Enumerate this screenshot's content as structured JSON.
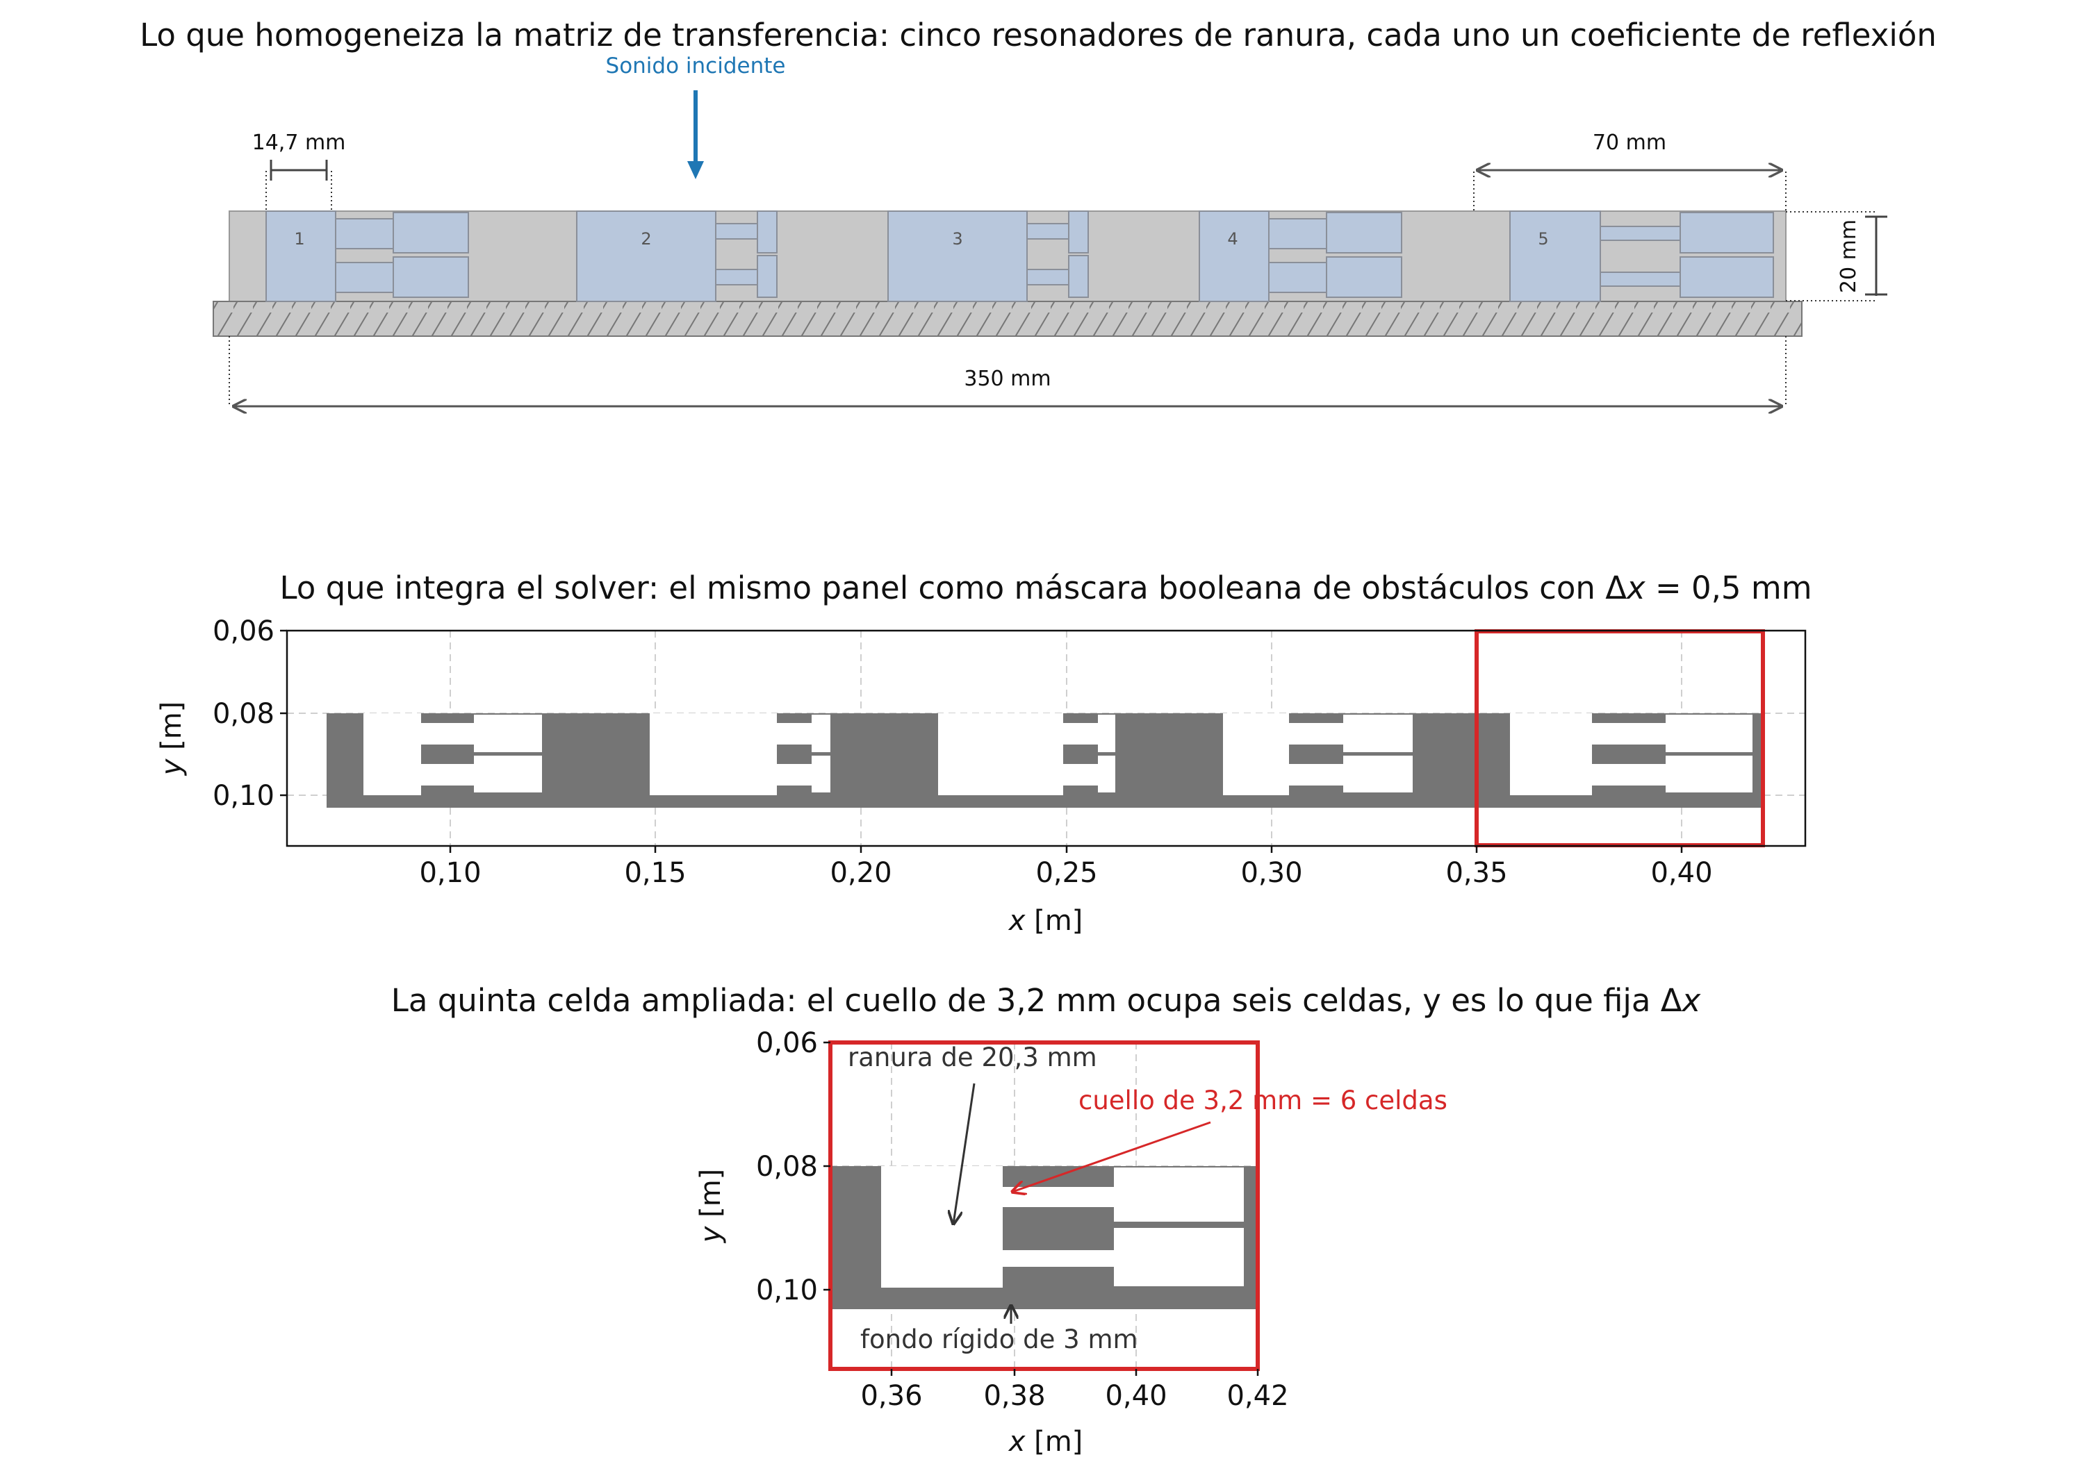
{
  "panel1": {
    "title": "Lo que homogeneiza la matriz de transferencia: cinco resonadores de ranura, cada uno un coeficiente de reflexión",
    "incident_label": "Sonido incidente",
    "dim_cell_width": "14,7 mm",
    "dim_period": "70 mm",
    "dim_total": "350 mm",
    "dim_height": "20 mm",
    "resonator_labels": [
      "1",
      "2",
      "3",
      "4",
      "5"
    ]
  },
  "panel2": {
    "title_main": "Lo que integra el solver: el mismo panel como máscara booleana de obstáculos con Δ",
    "title_var": "x",
    "title_tail": " = 0,5 mm",
    "xlabel_var": "x",
    "xlabel_unit": " [m]",
    "ylabel_var": "y",
    "ylabel_unit": " [m]",
    "xticks": [
      "0,10",
      "0,15",
      "0,20",
      "0,25",
      "0,30",
      "0,35",
      "0,40"
    ],
    "yticks": [
      "0,06",
      "0,08",
      "0,10"
    ]
  },
  "panel3": {
    "title_main": "La quinta celda ampliada: el cuello de 3,2 mm ocupa seis celdas, y es lo que fija Δ",
    "title_var": "x",
    "xlabel_var": "x",
    "xlabel_unit": " [m]",
    "ylabel_var": "y",
    "ylabel_unit": " [m]",
    "xticks": [
      "0,36",
      "0,38",
      "0,40",
      "0,42"
    ],
    "yticks": [
      "0,06",
      "0,08",
      "0,10"
    ],
    "annotations": {
      "slot": "ranura de 20,3 mm",
      "neck": "cuello de 3,2 mm = 6 celdas",
      "backing": "fondo rígido de 3 mm"
    }
  },
  "colors": {
    "resonator_fill": "#b8c7dc",
    "panel_fill": "#c8c8c8",
    "obstacle": "#757575",
    "highlight": "#d62728",
    "incident": "#1f77b4"
  }
}
